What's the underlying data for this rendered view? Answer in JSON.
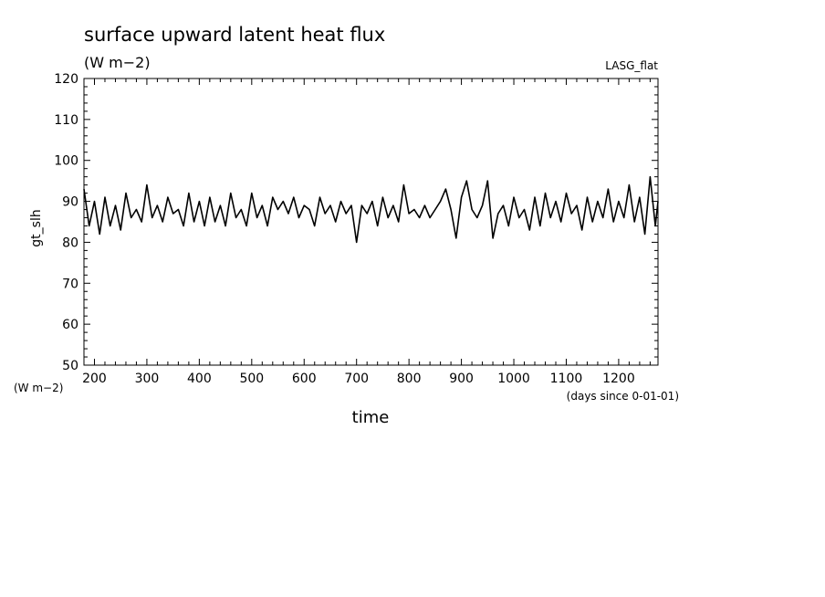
{
  "chart_data": {
    "type": "line",
    "title": "surface upward latent heat flux",
    "units_label": "(W m−2)",
    "dataset_label": "LASG_flat",
    "xlabel": "time",
    "x_units_label": "(days since 0-01-01)",
    "ylabel": "gt_slh",
    "y_units_label": "(W m−2)",
    "xlim": [
      180,
      1275
    ],
    "ylim": [
      50,
      120
    ],
    "xticks": [
      200,
      300,
      400,
      500,
      600,
      700,
      800,
      900,
      1000,
      1100,
      1200
    ],
    "yticks": [
      50,
      60,
      70,
      80,
      90,
      100,
      110,
      120
    ],
    "grid": false,
    "series": [
      {
        "color": "#000000",
        "x": [
          180,
          190,
          200,
          210,
          220,
          230,
          240,
          250,
          260,
          270,
          280,
          290,
          300,
          310,
          320,
          330,
          340,
          350,
          360,
          370,
          380,
          390,
          400,
          410,
          420,
          430,
          440,
          450,
          460,
          470,
          480,
          490,
          500,
          510,
          520,
          530,
          540,
          550,
          560,
          570,
          580,
          590,
          600,
          610,
          620,
          630,
          640,
          650,
          660,
          670,
          680,
          690,
          700,
          710,
          720,
          730,
          740,
          750,
          760,
          770,
          780,
          790,
          800,
          810,
          820,
          830,
          840,
          850,
          860,
          870,
          880,
          890,
          900,
          910,
          920,
          930,
          940,
          950,
          960,
          970,
          980,
          990,
          1000,
          1010,
          1020,
          1030,
          1040,
          1050,
          1060,
          1070,
          1080,
          1090,
          1100,
          1110,
          1120,
          1130,
          1140,
          1150,
          1160,
          1170,
          1180,
          1190,
          1200,
          1210,
          1220,
          1230,
          1240,
          1250,
          1260,
          1270,
          1275
        ],
        "values": [
          93,
          84,
          90,
          82,
          91,
          84,
          89,
          83,
          92,
          86,
          88,
          85,
          94,
          86,
          89,
          85,
          91,
          87,
          88,
          84,
          92,
          85,
          90,
          84,
          91,
          85,
          89,
          84,
          92,
          86,
          88,
          84,
          92,
          86,
          89,
          84,
          91,
          88,
          90,
          87,
          91,
          86,
          89,
          88,
          84,
          91,
          87,
          89,
          85,
          90,
          87,
          89,
          80,
          89,
          87,
          90,
          84,
          91,
          86,
          89,
          85,
          94,
          87,
          88,
          86,
          89,
          86,
          88,
          90,
          93,
          88,
          81,
          91,
          95,
          88,
          86,
          89,
          95,
          81,
          87,
          89,
          84,
          91,
          86,
          88,
          83,
          91,
          84,
          92,
          86,
          90,
          85,
          92,
          87,
          89,
          83,
          91,
          85,
          90,
          86,
          93,
          85,
          90,
          86,
          94,
          85,
          91,
          82,
          96,
          84,
          90
        ]
      }
    ]
  }
}
